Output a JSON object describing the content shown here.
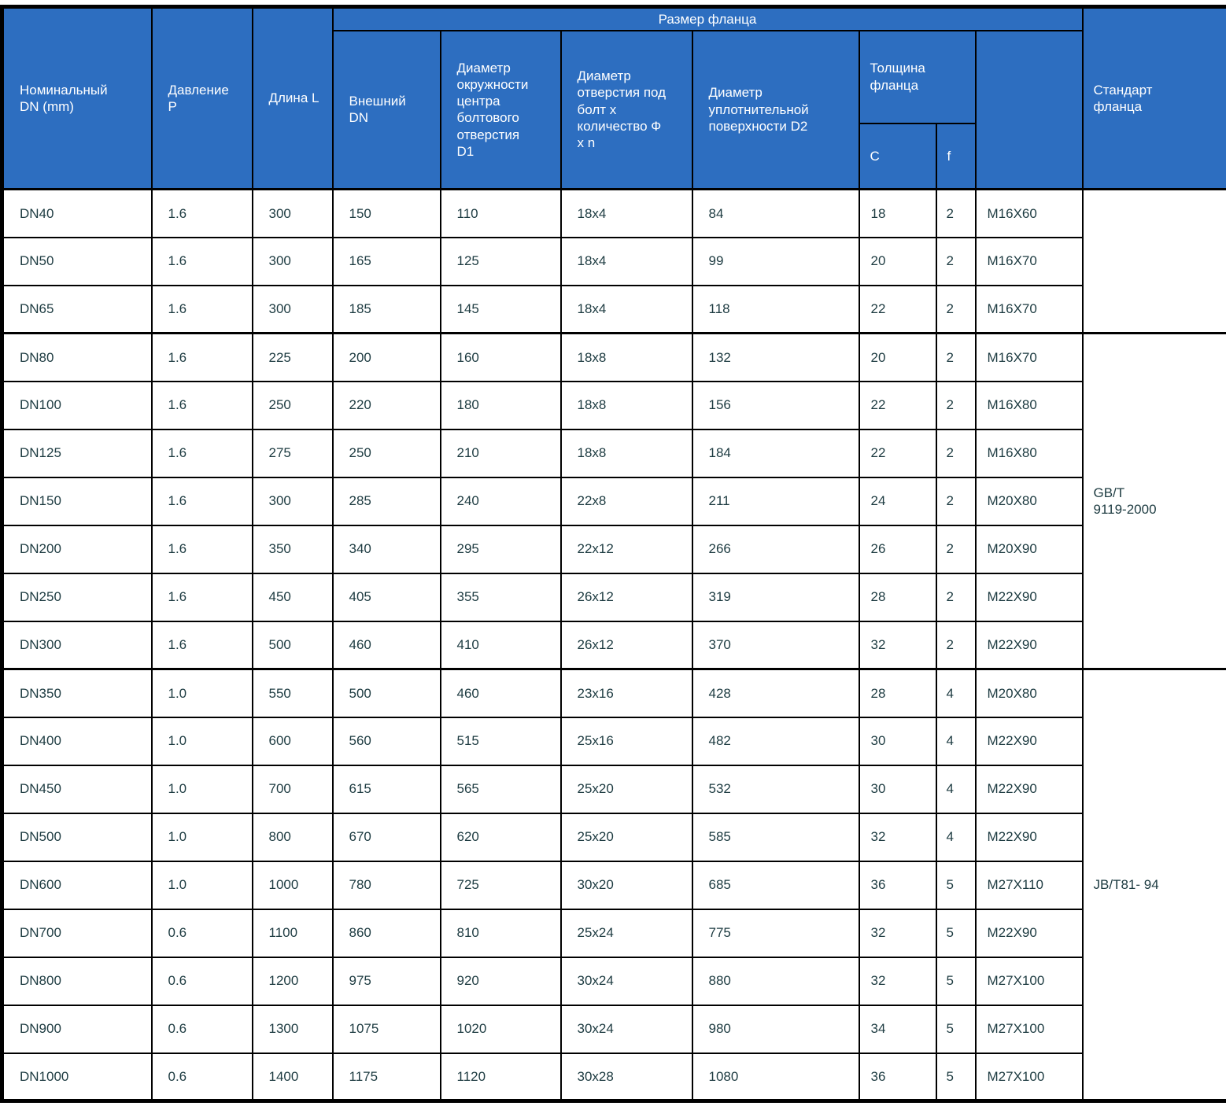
{
  "colors": {
    "header_bg": "#2d6ec0",
    "header_text": "#ffffff",
    "body_text": "#1d3b41",
    "border": "#000000"
  },
  "table": {
    "headers": {
      "nominal_dn": "Номинальный\nDN (mm)",
      "pressure": "Давление\nP",
      "length": "Длина L",
      "flange_size_group": "Размер фланца",
      "outer_dn": "Внешний\nDN",
      "d1": "Диаметр\nокружности\nцентра\nболтового\nотверстия\nD1",
      "bolt_hole": "Диаметр\nотверстия под\nболт x\nколичество Ф\nx n",
      "d2": "Диаметр\nуплотнительной\nповерхности D2",
      "thickness_group": "Толщина\nфланца",
      "c": "C",
      "f": "f",
      "bolt_spec": "",
      "standard": "Стандарт\nфланца"
    },
    "groups": [
      {
        "standard": "",
        "rows": [
          [
            "DN40",
            "1.6",
            "300",
            "150",
            "110",
            "18x4",
            "84",
            "18",
            "2",
            "M16X60"
          ],
          [
            "DN50",
            "1.6",
            "300",
            "165",
            "125",
            "18x4",
            "99",
            "20",
            "2",
            "M16X70"
          ],
          [
            "DN65",
            "1.6",
            "300",
            "185",
            "145",
            "18x4",
            "118",
            "22",
            "2",
            "M16X70"
          ]
        ]
      },
      {
        "standard": "GB/T\n9119-2000",
        "rows": [
          [
            "DN80",
            "1.6",
            "225",
            "200",
            "160",
            "18x8",
            "132",
            "20",
            "2",
            "M16X70"
          ],
          [
            "DN100",
            "1.6",
            "250",
            "220",
            "180",
            "18x8",
            "156",
            "22",
            "2",
            "M16X80"
          ],
          [
            "DN125",
            "1.6",
            "275",
            "250",
            "210",
            "18x8",
            "184",
            "22",
            "2",
            "M16X80"
          ],
          [
            "DN150",
            "1.6",
            "300",
            "285",
            "240",
            "22x8",
            "211",
            "24",
            "2",
            "M20X80"
          ],
          [
            "DN200",
            "1.6",
            "350",
            "340",
            "295",
            "22x12",
            "266",
            "26",
            "2",
            "M20X90"
          ],
          [
            "DN250",
            "1.6",
            "450",
            "405",
            "355",
            "26x12",
            "319",
            "28",
            "2",
            "M22X90"
          ],
          [
            "DN300",
            "1.6",
            "500",
            "460",
            "410",
            "26x12",
            "370",
            "32",
            "2",
            "M22X90"
          ]
        ]
      },
      {
        "standard": "JB/T81- 94",
        "rows": [
          [
            "DN350",
            "1.0",
            "550",
            "500",
            "460",
            "23x16",
            "428",
            "28",
            "4",
            "M20X80"
          ],
          [
            "DN400",
            "1.0",
            "600",
            "560",
            "515",
            "25x16",
            "482",
            "30",
            "4",
            "M22X90"
          ],
          [
            "DN450",
            "1.0",
            "700",
            "615",
            "565",
            "25x20",
            "532",
            "30",
            "4",
            "M22X90"
          ],
          [
            "DN500",
            "1.0",
            "800",
            "670",
            "620",
            "25x20",
            "585",
            "32",
            "4",
            "M22X90"
          ],
          [
            "DN600",
            "1.0",
            "1000",
            "780",
            "725",
            "30x20",
            "685",
            "36",
            "5",
            "M27X110"
          ],
          [
            "DN700",
            "0.6",
            "1100",
            "860",
            "810",
            "25x24",
            "775",
            "32",
            "5",
            "M22X90"
          ],
          [
            "DN800",
            "0.6",
            "1200",
            "975",
            "920",
            "30x24",
            "880",
            "32",
            "5",
            "M27X100"
          ],
          [
            "DN900",
            "0.6",
            "1300",
            "1075",
            "1020",
            "30x24",
            "980",
            "34",
            "5",
            "M27X100"
          ],
          [
            "DN1000",
            "0.6",
            "1400",
            "1175",
            "1120",
            "30x28",
            "1080",
            "36",
            "5",
            "M27X100"
          ]
        ]
      }
    ]
  }
}
